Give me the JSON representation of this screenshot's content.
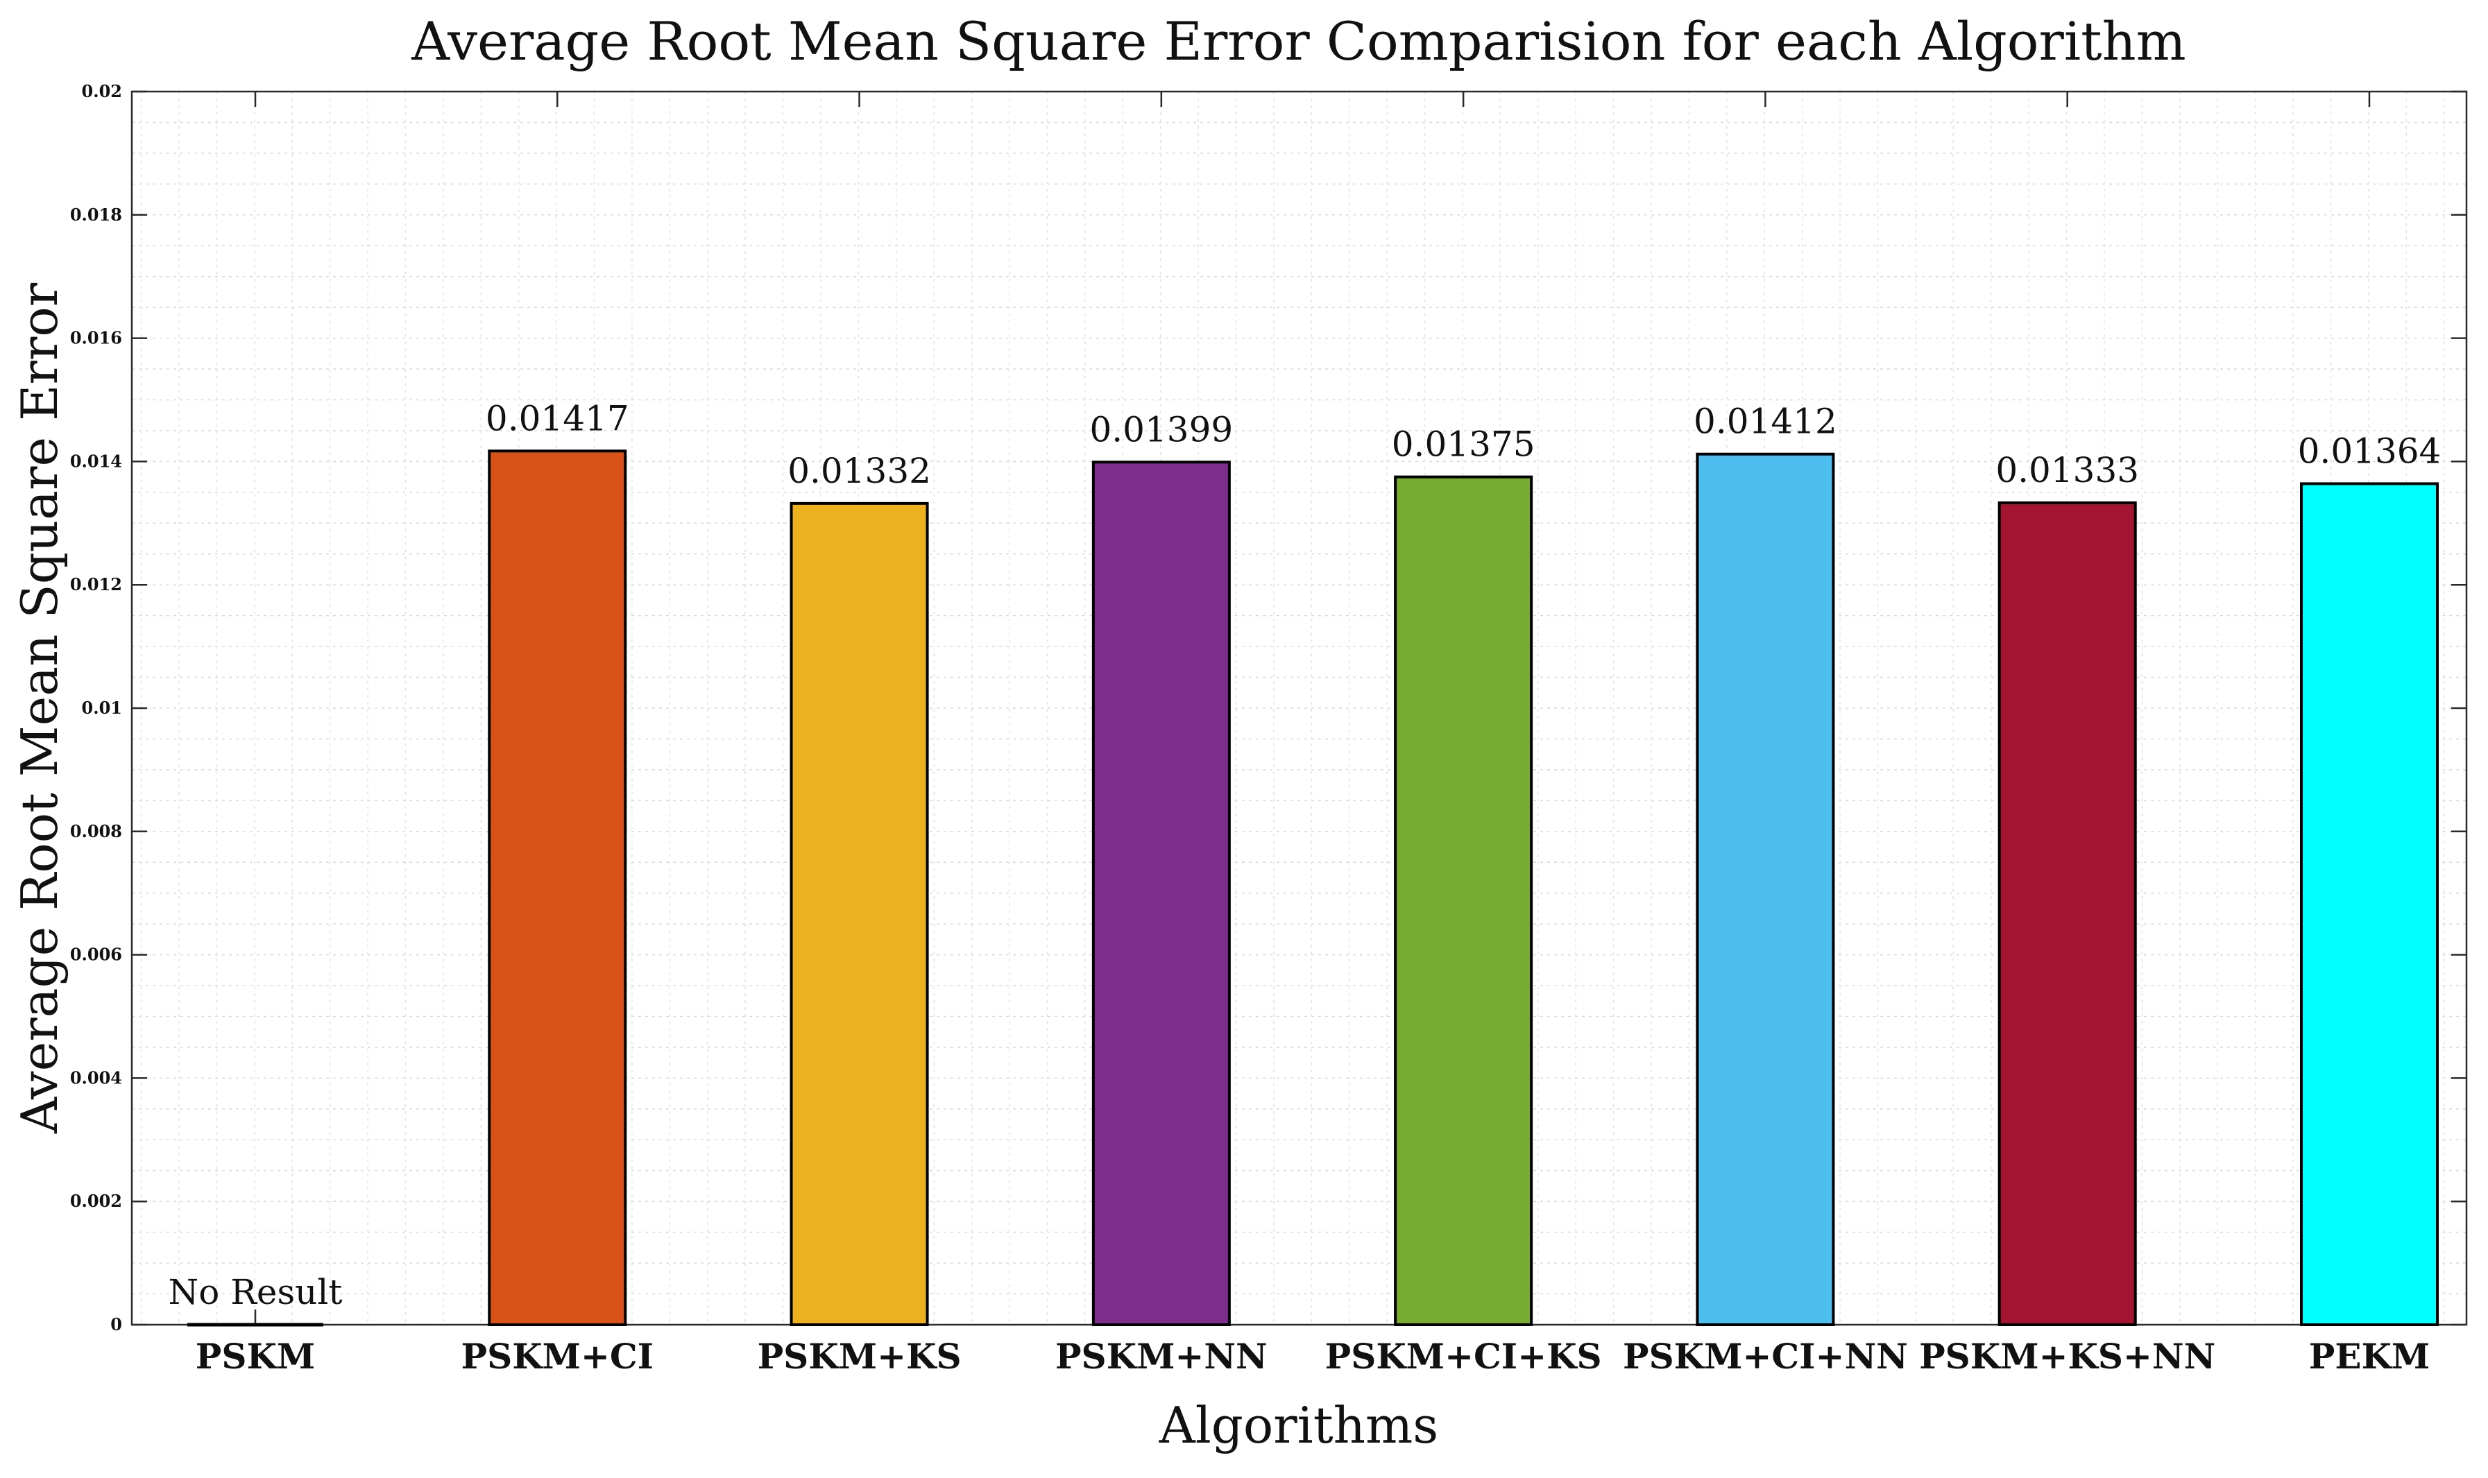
{
  "chart_data": {
    "type": "bar",
    "title": "Average Root Mean Square Error Comparision for each Algorithm",
    "xlabel": "Algorithms",
    "ylabel": "Average Root Mean Square Error",
    "categories": [
      "PSKM",
      "PSKM+CI",
      "PSKM+KS",
      "PSKM+NN",
      "PSKM+CI+KS",
      "PSKM+CI+NN",
      "PSKM+KS+NN",
      "PEKM"
    ],
    "values": [
      0,
      0.01417,
      0.01332,
      0.01399,
      0.01375,
      0.01412,
      0.01333,
      0.01364
    ],
    "data_labels": [
      "No Result",
      "0.01417",
      "0.01332",
      "0.01399",
      "0.01375",
      "0.01412",
      "0.01333",
      "0.01364"
    ],
    "colors": [
      "#000000",
      "#D95319",
      "#EDB120",
      "#7E2F8E",
      "#77AC30",
      "#4DBEEE",
      "#A2142F",
      "#00FFFF"
    ],
    "ylim": [
      0,
      0.02
    ],
    "yticks": [
      0,
      0.002,
      0.004,
      0.006,
      0.008,
      0.01,
      0.012,
      0.014,
      0.016,
      0.018,
      0.02
    ],
    "ytick_labels": [
      "0",
      "0.002",
      "0.004",
      "0.006",
      "0.008",
      "0.01",
      "0.012",
      "0.014",
      "0.016",
      "0.018",
      "0.02"
    ],
    "grid": true,
    "minor_grid": true,
    "legend": "none"
  }
}
